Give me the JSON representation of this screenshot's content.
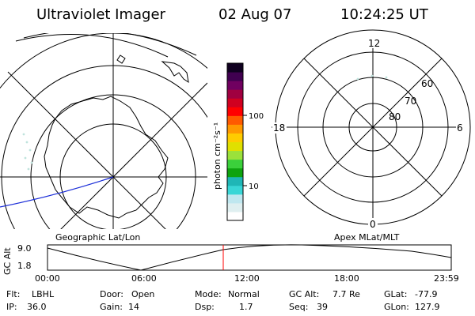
{
  "header": {
    "instrument": "Ultraviolet Imager",
    "date": "02 Aug 07",
    "time": "10:24:25 UT"
  },
  "colorbar": {
    "unit_label": "photon cm⁻²s⁻¹",
    "tick_labels": [
      "100",
      "10"
    ],
    "colors": [
      "#ffffff",
      "#dfeff0",
      "#bfe7ef",
      "#39d6d6",
      "#1fb6b6",
      "#0ea30e",
      "#3bd03b",
      "#9be13b",
      "#e0e000",
      "#ffcc00",
      "#ff9900",
      "#ff5a00",
      "#ff0000",
      "#d00020",
      "#a00040",
      "#700060",
      "#400050",
      "#100020"
    ]
  },
  "left_panel": {
    "label": "Geographic Lat/Lon"
  },
  "right_panel": {
    "label": "Apex MLat/MLT",
    "mlt_labels": {
      "top": "12",
      "left": "18",
      "right": "6",
      "bottom": "0"
    },
    "mlat_labels": [
      "60",
      "70",
      "80"
    ]
  },
  "altitude_plot": {
    "y_axis_label": "GC Alt",
    "y_ticks": [
      "9.0",
      "1.8"
    ],
    "x_ticks": [
      "00:00",
      "06:00",
      "12:00",
      "18:00",
      "23:59"
    ],
    "marker_color": "#ff0000"
  },
  "footer": {
    "rows": [
      [
        {
          "k": "Flt:",
          "v": "LBHL"
        },
        {
          "k": "Door:",
          "v": "Open"
        },
        {
          "k": "Mode:",
          "v": "Normal"
        },
        {
          "k": "GC Alt:",
          "v": "7.7 Re"
        },
        {
          "k": "GLat:",
          "v": "-77.9"
        }
      ],
      [
        {
          "k": "IP:",
          "v": "36.0"
        },
        {
          "k": "Gain:",
          "v": "14"
        },
        {
          "k": "Dsp:",
          "v": "1.7"
        },
        {
          "k": "Seq:",
          "v": "39"
        },
        {
          "k": "GLon:",
          "v": "127.9"
        }
      ]
    ]
  }
}
